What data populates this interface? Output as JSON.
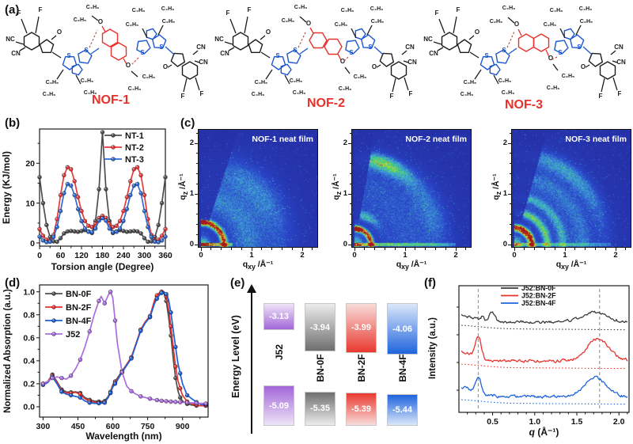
{
  "panel_labels": {
    "a": "(a)",
    "b": "(b)",
    "c": "(c)",
    "d": "(d)",
    "e": "(e)",
    "f": "(f)"
  },
  "molecules": [
    {
      "name": "NOF-1"
    },
    {
      "name": "NOF-2"
    },
    {
      "name": "NOF-3"
    }
  ],
  "atom_labels": {
    "F": "F",
    "O": "O",
    "S": "S",
    "NC": "NC",
    "CN": "CN",
    "C2": "C₂H₅",
    "C4": "C₄H₉"
  },
  "molecule_colors": {
    "name": "#e8312a",
    "backbone_blue": "#1b57d0",
    "core_red": "#e8312a",
    "black": "#1c1c1c"
  },
  "chart_data": [
    {
      "id": "panel-b",
      "type": "line",
      "title": "",
      "xlabel": "Torsion angle (Degree)",
      "ylabel": "Energy (KJ/mol)",
      "xlim": [
        0,
        360
      ],
      "ylim": [
        -0.8,
        28.6
      ],
      "xticks": [
        0,
        60,
        120,
        180,
        240,
        300,
        360
      ],
      "yticks": [
        0,
        10,
        20
      ],
      "legend_position": "top-right",
      "x": [
        0,
        10,
        20,
        30,
        40,
        50,
        60,
        70,
        80,
        90,
        100,
        110,
        120,
        130,
        140,
        150,
        160,
        170,
        180,
        190,
        200,
        210,
        220,
        230,
        240,
        250,
        260,
        270,
        280,
        290,
        300,
        310,
        320,
        330,
        340,
        350,
        360
      ],
      "series": [
        {
          "name": "NT-1",
          "color": "#4e4e4e",
          "values": [
            16.5,
            10,
            4.5,
            1.5,
            0.4,
            0.3,
            1.2,
            2.4,
            2.9,
            3,
            2.9,
            2.8,
            3,
            3.2,
            2.9,
            2.5,
            5.5,
            13.5,
            27.8,
            13.5,
            5.5,
            2.5,
            2.9,
            3.2,
            3,
            2.8,
            2.9,
            3,
            2.9,
            2.4,
            1.2,
            0.3,
            0.4,
            1.5,
            4.5,
            10,
            16.5
          ]
        },
        {
          "name": "NT-2",
          "color": "#e8393b",
          "values": [
            3.5,
            1.8,
            0.8,
            0.5,
            2,
            6,
            12,
            17,
            19,
            18.5,
            15.5,
            11.5,
            8,
            5.5,
            4.3,
            4,
            4.8,
            6.3,
            6.8,
            6.3,
            4.8,
            4,
            4.3,
            5.5,
            8,
            11.5,
            15.5,
            18.5,
            19,
            17,
            12,
            6,
            2,
            0.5,
            0.8,
            1.8,
            3.5
          ]
        },
        {
          "name": "NT-3",
          "color": "#2f6bd7",
          "values": [
            1.6,
            0.6,
            0.2,
            0.3,
            1.5,
            4,
            8,
            12.5,
            14.8,
            14.4,
            12,
            8.5,
            5.5,
            3.6,
            2.8,
            2.7,
            3.6,
            5.6,
            6.2,
            5.6,
            3.6,
            2.7,
            2.8,
            3.6,
            5.5,
            8.5,
            12,
            14.4,
            14.8,
            12.5,
            8,
            4,
            1.5,
            0.3,
            0.2,
            0.6,
            1.6
          ]
        }
      ]
    },
    {
      "id": "giwaxs-nof1",
      "type": "heatmap",
      "title": "NOF-1 neat film",
      "xlabel_parts": {
        "base": "q",
        "sub": "xy",
        "unit": " /Å⁻¹"
      },
      "ylabel_parts": {
        "base": "q",
        "sub": "z",
        "unit": " /Å⁻¹"
      },
      "xticks": [
        0,
        1,
        2
      ],
      "yticks": [
        0,
        1,
        2
      ],
      "colormap": "jet",
      "background": "#2733ab",
      "seed": 11,
      "wedge_deg": 72,
      "diffuse": 0.17,
      "rings": [
        {
          "q": 0.45,
          "amp": 1.0,
          "w": 0.06
        },
        {
          "q": 0.45,
          "amp": 0.8,
          "w": 0.05,
          "c": 84,
          "s": 9
        },
        {
          "q": 0.9,
          "amp": 0.1,
          "w": 0.25
        },
        {
          "q": 1.55,
          "amp": 0.16,
          "w": 0.3,
          "c": 45,
          "s": 38
        }
      ],
      "streak": {
        "len": 0.62,
        "amp": 0.85
      }
    },
    {
      "id": "giwaxs-nof2",
      "type": "heatmap",
      "title": "NOF-2 neat film",
      "xlabel_parts": {
        "base": "q",
        "sub": "xy",
        "unit": " /Å⁻¹"
      },
      "ylabel_parts": {
        "base": "q",
        "sub": "z",
        "unit": " /Å⁻¹"
      },
      "xticks": [
        0,
        1,
        2
      ],
      "yticks": [
        0,
        1,
        2
      ],
      "colormap": "jet",
      "background": "#2733ab",
      "seed": 22,
      "wedge_deg": 80,
      "diffuse": 0.18,
      "rings": [
        {
          "q": 0.32,
          "amp": 1.0,
          "w": 0.05
        },
        {
          "q": 0.32,
          "amp": 0.85,
          "w": 0.045,
          "c": 80,
          "s": 12
        },
        {
          "q": 0.6,
          "amp": 0.28,
          "w": 0.08,
          "c": 70,
          "s": 30
        },
        {
          "q": 1.7,
          "amp": 0.5,
          "w": 0.15,
          "c": 70,
          "s": 20
        },
        {
          "q": 1.65,
          "amp": 0.15,
          "w": 0.25,
          "c": 25,
          "s": 25
        }
      ],
      "streak": {
        "len": 2.0,
        "amp": 0.5
      }
    },
    {
      "id": "giwaxs-nof3",
      "type": "heatmap",
      "title": "NOF-3 neat film",
      "xlabel_parts": {
        "base": "q",
        "sub": "xy",
        "unit": " /Å⁻¹"
      },
      "ylabel_parts": {
        "base": "q",
        "sub": "z",
        "unit": " /Å⁻¹"
      },
      "xticks": [
        0,
        1,
        2
      ],
      "yticks": [
        0,
        1,
        2
      ],
      "colormap": "jet",
      "background": "#2733ab",
      "seed": 33,
      "wedge_deg": 74,
      "diffuse": 0.17,
      "rings": [
        {
          "q": 0.35,
          "amp": 1.0,
          "w": 0.05
        },
        {
          "q": 0.29,
          "amp": 0.6,
          "w": 0.04,
          "c": 45,
          "s": 50
        },
        {
          "q": 0.64,
          "amp": 0.42,
          "w": 0.07
        },
        {
          "q": 0.95,
          "amp": 0.22,
          "w": 0.08
        },
        {
          "q": 1.35,
          "amp": 0.1,
          "w": 0.15
        },
        {
          "q": 1.78,
          "amp": 0.26,
          "w": 0.17,
          "c": 55,
          "s": 40
        }
      ],
      "streak": {
        "len": 1.9,
        "amp": 0.35
      }
    },
    {
      "id": "panel-d",
      "type": "line",
      "title": "",
      "xlabel": "Wavelength (nm)",
      "ylabel": "Normalized Absorption (a.u.)",
      "xlim": [
        285,
        1010
      ],
      "ylim": [
        -0.09,
        1.06
      ],
      "xticks": [
        300,
        450,
        600,
        750,
        900
      ],
      "yticks": [
        0,
        0.2,
        0.4,
        0.6,
        0.8,
        1
      ],
      "legend_position": "top-left",
      "x": [
        300,
        320,
        340,
        360,
        380,
        400,
        420,
        440,
        460,
        480,
        500,
        520,
        540,
        550,
        565,
        580,
        590,
        600,
        610,
        620,
        640,
        660,
        680,
        700,
        720,
        740,
        760,
        780,
        790,
        800,
        810,
        820,
        830,
        840,
        850,
        860,
        870,
        880,
        890,
        900,
        920,
        940,
        960,
        980,
        1000
      ],
      "series": [
        {
          "name": "BN-0F",
          "color": "#4e4e4e",
          "values": [
            0.2,
            0.22,
            0.28,
            0.22,
            0.15,
            0.13,
            0.125,
            0.13,
            0.12,
            0.08,
            0.06,
            0.05,
            0.045,
            0.045,
            0.05,
            0.09,
            0.13,
            0.19,
            0.22,
            0.25,
            0.31,
            0.37,
            0.43,
            0.55,
            0.67,
            0.74,
            0.78,
            0.92,
            0.96,
            0.99,
            1.0,
            0.99,
            0.92,
            0.78,
            0.62,
            0.42,
            0.25,
            0.14,
            0.08,
            0.05,
            0.025,
            0.015,
            0.01,
            0.01,
            0.01
          ]
        },
        {
          "name": "BN-2F",
          "color": "#e8332e",
          "values": [
            0.2,
            0.22,
            0.27,
            0.21,
            0.14,
            0.12,
            0.12,
            0.125,
            0.11,
            0.07,
            0.05,
            0.04,
            0.035,
            0.035,
            0.04,
            0.08,
            0.12,
            0.18,
            0.21,
            0.24,
            0.3,
            0.37,
            0.43,
            0.55,
            0.67,
            0.74,
            0.79,
            0.93,
            0.97,
            0.99,
            1.0,
            1.0,
            0.96,
            0.85,
            0.7,
            0.52,
            0.35,
            0.23,
            0.16,
            0.1,
            0.045,
            0.025,
            0.015,
            0.01,
            0.01
          ]
        },
        {
          "name": "BN-4F",
          "color": "#1f5fd6",
          "values": [
            0.19,
            0.21,
            0.26,
            0.2,
            0.13,
            0.11,
            0.1,
            0.09,
            0.08,
            0.05,
            0.035,
            0.03,
            0.03,
            0.03,
            0.035,
            0.08,
            0.12,
            0.17,
            0.2,
            0.23,
            0.3,
            0.36,
            0.42,
            0.54,
            0.66,
            0.73,
            0.78,
            0.9,
            0.94,
            0.97,
            0.99,
            1.0,
            0.98,
            0.93,
            0.82,
            0.67,
            0.52,
            0.38,
            0.29,
            0.2,
            0.1,
            0.07,
            0.04,
            0.02,
            0.02
          ]
        },
        {
          "name": "J52",
          "color": "#ab6de0",
          "values": [
            0.2,
            0.22,
            0.25,
            0.26,
            0.25,
            0.24,
            0.27,
            0.33,
            0.41,
            0.52,
            0.655,
            0.8,
            0.92,
            0.96,
            0.9,
            0.97,
            1.0,
            0.95,
            0.75,
            0.55,
            0.3,
            0.18,
            0.135,
            0.11,
            0.09,
            0.08,
            0.07,
            0.06,
            0.058,
            0.055,
            0.052,
            0.05,
            0.048,
            0.047,
            0.045,
            0.044,
            0.042,
            0.041,
            0.04,
            0.038,
            0.036,
            0.034,
            0.032,
            0.03,
            0.028
          ]
        }
      ]
    },
    {
      "id": "panel-e",
      "type": "energy-level",
      "ylabel": "Energy Level (eV)",
      "materials": [
        {
          "name": "J52",
          "lumo": -3.13,
          "homo": -5.09,
          "lumo_label": "-3.13",
          "homo_label": "-5.09",
          "color": "#a266d8",
          "light": "#eee4f8"
        },
        {
          "name": "BN-0F",
          "lumo": -3.94,
          "homo": -5.35,
          "lumo_label": "-3.94",
          "homo_label": "-5.35",
          "color": "#6f6f6f",
          "light": "#ececec"
        },
        {
          "name": "BN-2F",
          "lumo": -3.99,
          "homo": -5.39,
          "lumo_label": "-3.99",
          "homo_label": "-5.39",
          "color": "#e8392f",
          "light": "#f8dcda"
        },
        {
          "name": "BN-4F",
          "lumo": -4.06,
          "homo": -5.44,
          "lumo_label": "-4.06",
          "homo_label": "-5.44",
          "color": "#1e64dd",
          "light": "#dbe7fa"
        }
      ]
    },
    {
      "id": "panel-f",
      "type": "line",
      "title": "",
      "xlabel_parts": {
        "base": "q",
        "unit": " (Å⁻¹)"
      },
      "ylabel": "Intensity (a.u.)",
      "xlim": [
        0.1,
        2.12
      ],
      "xticks": [
        0.5,
        1.0,
        1.5,
        2.0
      ],
      "dashed_guides": [
        0.33,
        1.77
      ],
      "series": [
        {
          "name": "J52:BN-0F",
          "color": "#3c3c3c",
          "baseline": 59,
          "left_rise": 9,
          "noise": 1.0,
          "dotted_offset": 8,
          "peaks": [
            {
              "q": 0.38,
              "amp": 5,
              "w": 0.02
            },
            {
              "q": 0.49,
              "amp": 11,
              "w": 0.05
            },
            {
              "q": 1.7,
              "amp": 12,
              "w": 0.22
            }
          ]
        },
        {
          "name": "J52:BN-2F",
          "color": "#e8332e",
          "baseline": 108,
          "left_rise": 12,
          "noise": 1.0,
          "dotted_offset": 8,
          "peaks": [
            {
              "q": 0.33,
              "amp": 26,
              "w": 0.05
            },
            {
              "q": 1.75,
              "amp": 28,
              "w": 0.18
            }
          ]
        },
        {
          "name": "J52:BN-4F",
          "color": "#1f64dd",
          "baseline": 153,
          "left_rise": 12,
          "noise": 1.0,
          "dotted_offset": 8,
          "peaks": [
            {
              "q": 0.33,
              "amp": 20,
              "w": 0.05
            },
            {
              "q": 1.72,
              "amp": 24,
              "w": 0.18
            }
          ]
        }
      ]
    }
  ]
}
